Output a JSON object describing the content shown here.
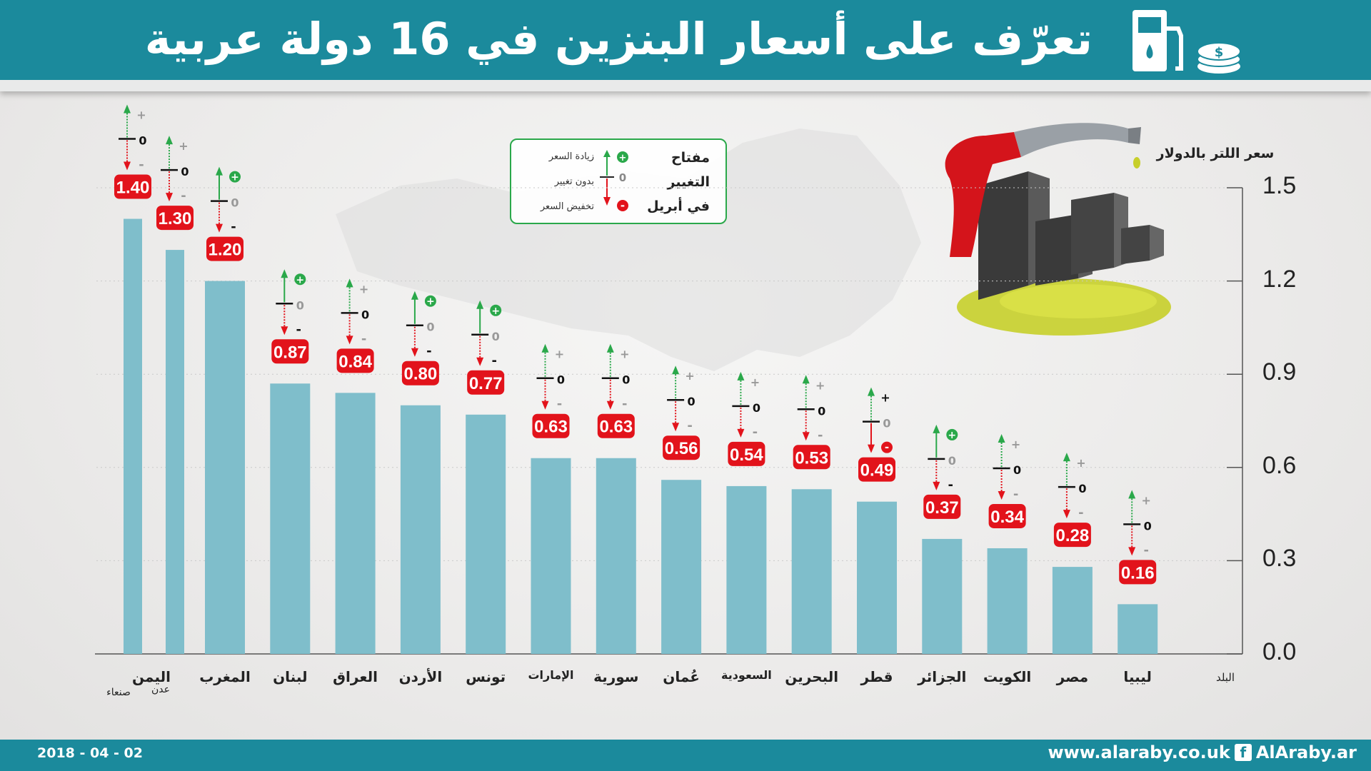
{
  "header": {
    "title": "تعرّف على أسعار البنزين في 16 دولة عربية"
  },
  "legend": {
    "lines": [
      "مفتاح",
      "التغيير",
      "في أبريل"
    ],
    "items": [
      {
        "label": "زيادة السعر",
        "symbol": "+"
      },
      {
        "label": "بدون تغيير",
        "symbol": "0"
      },
      {
        "label": "تخفيض السعر",
        "symbol": "-"
      }
    ]
  },
  "footer": {
    "date": "2018 - 04 - 02",
    "website": "www.alaraby.co.uk",
    "facebook": "AlAraby.ar"
  },
  "chart_data": {
    "type": "bar",
    "ylabel": "سعر اللتر بالدولار",
    "xlabel": "البلد",
    "ylim": [
      0,
      1.5
    ],
    "yticks": [
      "0.0",
      "0.3",
      "0.6",
      "0.9",
      "1.2",
      "1.5"
    ],
    "grid": true,
    "change_symbols": {
      "up": "+",
      "same": "0",
      "down": "-"
    },
    "bars": [
      {
        "country": "اليمن",
        "city": "صنعاء",
        "value": 1.4,
        "label": "1.40",
        "change": "same"
      },
      {
        "country": "",
        "city": "عدن",
        "value": 1.3,
        "label": "1.30",
        "change": "same"
      },
      {
        "country": "المغرب",
        "city": "",
        "value": 1.2,
        "label": "1.20",
        "change": "up"
      },
      {
        "country": "لبنان",
        "city": "",
        "value": 0.87,
        "label": "0.87",
        "change": "up"
      },
      {
        "country": "العراق",
        "city": "",
        "value": 0.84,
        "label": "0.84",
        "change": "same"
      },
      {
        "country": "الأردن",
        "city": "",
        "value": 0.8,
        "label": "0.80",
        "change": "up"
      },
      {
        "country": "تونس",
        "city": "",
        "value": 0.77,
        "label": "0.77",
        "change": "up"
      },
      {
        "country": "الإمارات",
        "city": "",
        "value": 0.63,
        "label": "0.63",
        "change": "same"
      },
      {
        "country": "سورية",
        "city": "",
        "value": 0.63,
        "label": "0.63",
        "change": "same"
      },
      {
        "country": "عُمان",
        "city": "",
        "value": 0.56,
        "label": "0.56",
        "change": "same"
      },
      {
        "country": "السعودية",
        "city": "",
        "value": 0.54,
        "label": "0.54",
        "change": "same"
      },
      {
        "country": "البحرين",
        "city": "",
        "value": 0.53,
        "label": "0.53",
        "change": "same"
      },
      {
        "country": "قطر",
        "city": "",
        "value": 0.49,
        "label": "0.49",
        "change": "down"
      },
      {
        "country": "الجزائر",
        "city": "",
        "value": 0.37,
        "label": "0.37",
        "change": "up"
      },
      {
        "country": "الكويت",
        "city": "",
        "value": 0.34,
        "label": "0.34",
        "change": "same"
      },
      {
        "country": "مصر",
        "city": "",
        "value": 0.28,
        "label": "0.28",
        "change": "same"
      },
      {
        "country": "ليبيا",
        "city": "",
        "value": 0.16,
        "label": "0.16",
        "change": "same"
      }
    ]
  },
  "colors": {
    "bar": "#7fbecb",
    "label_bg": "#e2131b",
    "header": "#1b8a9c",
    "up": "#2aa84a",
    "down": "#e2131b"
  }
}
